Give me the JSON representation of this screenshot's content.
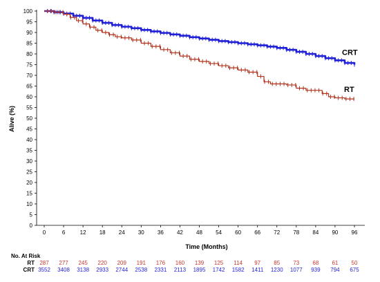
{
  "chart_data": {
    "type": "line",
    "xlabel": "Time (Months)",
    "ylabel": "Alive (%)",
    "xlim": [
      0,
      96
    ],
    "ylim": [
      0,
      100
    ],
    "x_ticks": [
      0,
      6,
      12,
      18,
      24,
      30,
      36,
      42,
      48,
      54,
      60,
      66,
      72,
      78,
      84,
      90,
      96
    ],
    "y_ticks": [
      0,
      5,
      10,
      15,
      20,
      25,
      30,
      35,
      40,
      45,
      50,
      55,
      60,
      65,
      70,
      75,
      80,
      85,
      90,
      95,
      100
    ],
    "grid": false,
    "series": [
      {
        "name": "CRT",
        "color": "#1f1fd6",
        "x": [
          0,
          3,
          6,
          9,
          12,
          15,
          18,
          21,
          24,
          27,
          30,
          33,
          36,
          39,
          42,
          45,
          48,
          51,
          54,
          57,
          60,
          63,
          66,
          69,
          72,
          75,
          78,
          81,
          84,
          87,
          90,
          93,
          96
        ],
        "y": [
          100,
          99.5,
          98.8,
          97.8,
          96.8,
          95.6,
          94.5,
          93.5,
          92.7,
          92.0,
          91.2,
          90.5,
          89.8,
          89.1,
          88.5,
          87.8,
          87.2,
          86.6,
          86.0,
          85.5,
          85.0,
          84.5,
          84.0,
          83.4,
          82.8,
          81.9,
          81.0,
          80.0,
          79.0,
          78.0,
          77.0,
          75.8,
          75.0
        ]
      },
      {
        "name": "RT",
        "color": "#b0321c",
        "x": [
          0,
          3,
          6,
          8,
          10,
          12,
          14,
          16,
          18,
          20,
          22,
          24,
          27,
          30,
          33,
          36,
          39,
          42,
          45,
          48,
          51,
          54,
          57,
          60,
          63,
          66,
          68,
          70,
          72,
          75,
          78,
          81,
          84,
          86,
          88,
          90,
          93,
          96
        ],
        "y": [
          100,
          99.5,
          98.5,
          97.0,
          95.5,
          94.0,
          92.5,
          91.0,
          90.0,
          89.0,
          88.0,
          87.5,
          86.5,
          85.0,
          83.5,
          82.0,
          80.5,
          79.0,
          77.5,
          76.5,
          75.5,
          74.5,
          73.5,
          72.5,
          71.5,
          69.5,
          67.0,
          66.0,
          66.0,
          65.5,
          64.0,
          63.0,
          63.0,
          61.5,
          60.0,
          59.5,
          59.0,
          59.0
        ]
      }
    ],
    "risk_table": {
      "title": "No. At Risk",
      "rows": [
        {
          "name": "RT",
          "color": "#c0392b",
          "values": [
            287,
            277,
            245,
            220,
            209,
            191,
            176,
            160,
            139,
            125,
            114,
            97,
            85,
            73,
            68,
            61,
            50
          ]
        },
        {
          "name": "CRT",
          "color": "#1f1fd6",
          "values": [
            3552,
            3408,
            3138,
            2933,
            2744,
            2538,
            2331,
            2113,
            1895,
            1742,
            1582,
            1411,
            1230,
            1077,
            939,
            794,
            675
          ]
        }
      ]
    }
  }
}
